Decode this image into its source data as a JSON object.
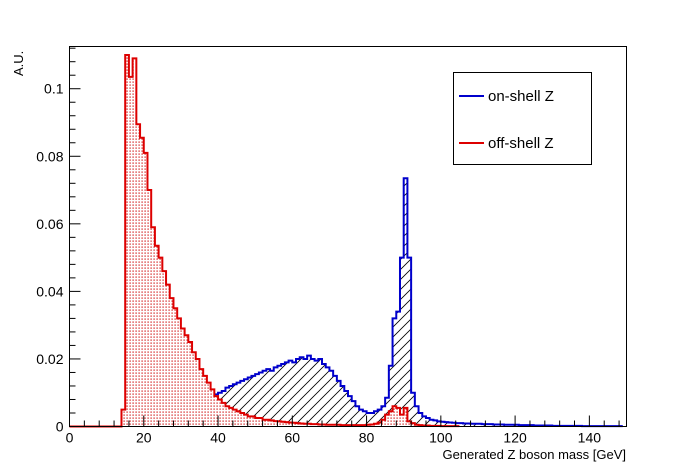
{
  "chart_data": {
    "type": "histogram",
    "xlabel": "Generated Z boson mass [GeV]",
    "ylabel": "A.U.",
    "xlim": [
      0,
      150
    ],
    "ylim": [
      0,
      0.1125
    ],
    "bin_width": 1,
    "x_ticks": [
      0,
      20,
      40,
      60,
      80,
      100,
      120,
      140
    ],
    "y_ticks": [
      0,
      0.02,
      0.04,
      0.06,
      0.08,
      0.1
    ],
    "y_tick_labels": [
      "0",
      "0.02",
      "0.04",
      "0.06",
      "0.08",
      "0.1"
    ],
    "grid": false,
    "legend_position": "top-right",
    "series": [
      {
        "name": "on-shell Z",
        "color": "#0000cc",
        "fill": "diagonal-hatch",
        "x_start": 0,
        "values": [
          0,
          0,
          0,
          0,
          0,
          0,
          0,
          0,
          0,
          0,
          0,
          0,
          0,
          0,
          0.0005,
          0.001,
          0.0015,
          0.002,
          0.003,
          0.0035,
          0.004,
          0.0045,
          0.005,
          0.0055,
          0.0055,
          0.006,
          0.006,
          0.0065,
          0.007,
          0.0065,
          0.007,
          0.0065,
          0.007,
          0.0075,
          0.0075,
          0.008,
          0.008,
          0.0085,
          0.009,
          0.0095,
          0.01,
          0.0105,
          0.0115,
          0.012,
          0.0125,
          0.013,
          0.0135,
          0.014,
          0.0145,
          0.015,
          0.0155,
          0.016,
          0.0165,
          0.017,
          0.0165,
          0.0175,
          0.018,
          0.0185,
          0.019,
          0.0195,
          0.019,
          0.02,
          0.0205,
          0.02,
          0.021,
          0.02,
          0.0195,
          0.02,
          0.0185,
          0.0175,
          0.0165,
          0.015,
          0.0135,
          0.012,
          0.0105,
          0.009,
          0.0075,
          0.006,
          0.005,
          0.0045,
          0.004,
          0.004,
          0.0045,
          0.005,
          0.006,
          0.0085,
          0.018,
          0.032,
          0.034,
          0.05,
          0.0735,
          0.05,
          0.01,
          0.006,
          0.004,
          0.003,
          0.0025,
          0.002,
          0.0018,
          0.0015,
          0.0014,
          0.0013,
          0.0012,
          0.0011,
          0.001,
          0.001,
          0.0009,
          0.0009,
          0.0008,
          0.0008,
          0.0008,
          0.0007,
          0.0007,
          0.0007,
          0.0006,
          0.0006,
          0.0006,
          0.0005,
          0.0005,
          0.0005,
          0.0005,
          0.0004,
          0.0004,
          0.0004,
          0.0004,
          0.0003,
          0.0003,
          0.0003,
          0.0003,
          0.0003,
          0.0002,
          0.0002,
          0.0002,
          0.0002,
          0.0002,
          0.0002,
          0.0002,
          0.0002,
          0.0001,
          0.0001,
          0.0001,
          0.0001,
          0.0001,
          0.0001,
          0.0001,
          0.0001,
          0.0001,
          0.0001,
          0.0001
        ]
      },
      {
        "name": "off-shell Z",
        "color": "#dd0000",
        "fill": "dotted-red",
        "x_start": 0,
        "values": [
          0,
          0,
          0,
          0,
          0,
          0,
          0,
          0,
          0,
          0,
          0,
          0,
          0,
          0,
          0.005,
          0.11,
          0.1035,
          0.109,
          0.0895,
          0.0855,
          0.081,
          0.07,
          0.059,
          0.0535,
          0.05,
          0.046,
          0.042,
          0.038,
          0.035,
          0.032,
          0.029,
          0.027,
          0.025,
          0.022,
          0.02,
          0.017,
          0.015,
          0.013,
          0.011,
          0.009,
          0.008,
          0.007,
          0.006,
          0.0055,
          0.005,
          0.0045,
          0.004,
          0.0035,
          0.003,
          0.003,
          0.0025,
          0.0025,
          0.002,
          0.002,
          0.0018,
          0.0016,
          0.0015,
          0.0014,
          0.0013,
          0.0012,
          0.0011,
          0.001,
          0.0009,
          0.0008,
          0.0008,
          0.0007,
          0.0007,
          0.0006,
          0.0006,
          0.0005,
          0.0005,
          0.0005,
          0.0005,
          0.0004,
          0.0004,
          0.0004,
          0.0004,
          0.0004,
          0.0004,
          0.0004,
          0.0005,
          0.0006,
          0.0008,
          0.0012,
          0.002,
          0.0035,
          0.0045,
          0.006,
          0.0055,
          0.0035,
          0.0055,
          0.0015,
          0.001,
          0.0005,
          0.0004,
          0.0003,
          0.0003,
          0.0002,
          0.0002,
          0.0002,
          0.0001,
          0.0001,
          0.0001,
          0.0001,
          0.0001
        ]
      }
    ]
  }
}
